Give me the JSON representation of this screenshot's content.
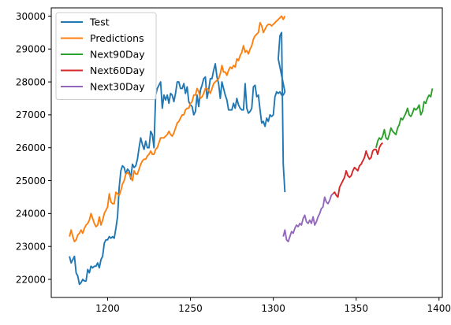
{
  "chart_data": {
    "type": "line",
    "xlim": [
      1166.0,
      1402.0
    ],
    "ylim": [
      21450,
      30250
    ],
    "xticks": [
      1200,
      1250,
      1300,
      1350,
      1400
    ],
    "yticks": [
      22000,
      23000,
      24000,
      25000,
      26000,
      27000,
      28000,
      29000,
      30000
    ],
    "legend_position": "top-left",
    "grid": false,
    "series": [
      {
        "name": "Test",
        "color": "#1f77b4",
        "x": [
          1177,
          1178,
          1179,
          1180,
          1181,
          1182,
          1183,
          1184,
          1185,
          1186,
          1187,
          1188,
          1189,
          1190,
          1191,
          1192,
          1193,
          1194,
          1195,
          1196,
          1197,
          1198,
          1199,
          1200,
          1201,
          1202,
          1203,
          1204,
          1205,
          1206,
          1207,
          1208,
          1209,
          1210,
          1211,
          1212,
          1213,
          1214,
          1215,
          1216,
          1217,
          1218,
          1219,
          1220,
          1221,
          1222,
          1223,
          1224,
          1225,
          1226,
          1227,
          1228,
          1229,
          1230,
          1231,
          1232,
          1233,
          1234,
          1235,
          1236,
          1237,
          1238,
          1239,
          1240,
          1241,
          1242,
          1243,
          1244,
          1245,
          1246,
          1247,
          1248,
          1249,
          1250,
          1251,
          1252,
          1253,
          1254,
          1255,
          1256,
          1257,
          1258,
          1259,
          1260,
          1261,
          1262,
          1263,
          1264,
          1265,
          1266,
          1267,
          1268,
          1269,
          1270,
          1271,
          1272,
          1273,
          1274,
          1275,
          1276,
          1277,
          1278,
          1279,
          1280,
          1281,
          1282,
          1283,
          1284,
          1285,
          1286,
          1287,
          1288,
          1289,
          1290,
          1291,
          1292,
          1293,
          1294,
          1295,
          1296,
          1297,
          1298,
          1299,
          1300,
          1301,
          1302,
          1303,
          1304,
          1305,
          1306,
          1307
        ],
        "y": [
          22700,
          22500,
          22600,
          22700,
          22200,
          22100,
          21850,
          21900,
          22000,
          21950,
          21950,
          22300,
          22200,
          22400,
          22350,
          22400,
          22400,
          22500,
          22350,
          22600,
          22700,
          23100,
          23200,
          23200,
          23300,
          23250,
          23300,
          23250,
          23550,
          23900,
          24800,
          25300,
          25450,
          25400,
          25200,
          25350,
          25300,
          25050,
          25500,
          25400,
          25450,
          25650,
          26000,
          26300,
          26100,
          25950,
          26200,
          26000,
          26000,
          26500,
          26400,
          26000,
          27600,
          27800,
          27900,
          28000,
          27200,
          27600,
          27450,
          27600,
          27350,
          27650,
          27600,
          27400,
          27650,
          28000,
          28000,
          27800,
          27800,
          27950,
          27650,
          27850,
          27400,
          27300,
          27250,
          27000,
          27100,
          27600,
          27250,
          27750,
          27900,
          28100,
          28150,
          27500,
          27750,
          28100,
          28100,
          28350,
          28550,
          28150,
          27950,
          27500,
          28000,
          27800,
          27600,
          27450,
          27150,
          27150,
          27150,
          27350,
          27200,
          27500,
          27300,
          27200,
          27150,
          27150,
          27950,
          27200,
          27050,
          27100,
          27200,
          27850,
          27900,
          27550,
          27600,
          27150,
          26750,
          26800,
          26650,
          26900,
          26800,
          27000,
          26950,
          27000,
          27550,
          27700,
          27650,
          27700,
          27600,
          27600,
          27700
        ],
        "tail_x": [
          1303,
          1304,
          1305,
          1306,
          1307
        ],
        "tail_y": [
          28700,
          29400,
          29500,
          25500,
          24650
        ]
      },
      {
        "name": "Predictions",
        "color": "#ff7f0e",
        "x": [
          1177,
          1178,
          1179,
          1180,
          1181,
          1182,
          1183,
          1184,
          1185,
          1186,
          1187,
          1188,
          1189,
          1190,
          1191,
          1192,
          1193,
          1194,
          1195,
          1196,
          1197,
          1198,
          1199,
          1200,
          1201,
          1202,
          1203,
          1204,
          1205,
          1206,
          1207,
          1208,
          1209,
          1210,
          1211,
          1212,
          1213,
          1214,
          1215,
          1216,
          1217,
          1218,
          1219,
          1220,
          1221,
          1222,
          1223,
          1224,
          1225,
          1226,
          1227,
          1228,
          1229,
          1230,
          1231,
          1232,
          1233,
          1234,
          1235,
          1236,
          1237,
          1238,
          1239,
          1240,
          1241,
          1242,
          1243,
          1244,
          1245,
          1246,
          1247,
          1248,
          1249,
          1250,
          1251,
          1252,
          1253,
          1254,
          1255,
          1256,
          1257,
          1258,
          1259,
          1260,
          1261,
          1262,
          1263,
          1264,
          1265,
          1266,
          1267,
          1268,
          1269,
          1270,
          1271,
          1272,
          1273,
          1274,
          1275,
          1276,
          1277,
          1278,
          1279,
          1280,
          1281,
          1282,
          1283,
          1284,
          1285,
          1286,
          1287,
          1288,
          1289,
          1290,
          1291,
          1292,
          1293,
          1294,
          1295,
          1296,
          1297,
          1298,
          1299,
          1300,
          1301,
          1302,
          1303,
          1304,
          1305,
          1306,
          1307
        ],
        "y": [
          23300,
          23500,
          23300,
          23150,
          23200,
          23350,
          23400,
          23500,
          23400,
          23550,
          23650,
          23700,
          23800,
          24000,
          23850,
          23700,
          23600,
          23650,
          23900,
          23650,
          23800,
          24000,
          24100,
          24200,
          24600,
          24350,
          24300,
          24300,
          24650,
          24600,
          24550,
          24700,
          24900,
          25000,
          25200,
          25250,
          25200,
          25100,
          25000,
          25300,
          25200,
          25200,
          25350,
          25500,
          25600,
          25650,
          25650,
          25750,
          25800,
          25900,
          25800,
          25800,
          25950,
          26000,
          26150,
          26300,
          26300,
          26300,
          26350,
          26400,
          26500,
          26400,
          26350,
          26450,
          26600,
          26750,
          26800,
          26900,
          27000,
          27000,
          27150,
          27200,
          27200,
          27350,
          27400,
          27600,
          27600,
          27800,
          27700,
          27500,
          27550,
          27650,
          27800,
          27800,
          27750,
          27650,
          27800,
          27950,
          28000,
          28050,
          28100,
          28250,
          28500,
          28300,
          28300,
          28200,
          28350,
          28450,
          28400,
          28500,
          28450,
          28700,
          28650,
          28800,
          28900,
          29100,
          28900,
          28950,
          28850,
          29000,
          29100,
          29300,
          29400,
          29450,
          29500,
          29800,
          29700,
          29500,
          29600,
          29700,
          29750,
          29750,
          29700,
          29750,
          29800,
          29850,
          29900,
          29950,
          30000,
          29900,
          30000
        ]
      },
      {
        "name": "Next90Day",
        "color": "#2ca02c",
        "x": [
          1362,
          1363,
          1364,
          1365,
          1366,
          1367,
          1368,
          1369,
          1370,
          1371,
          1372,
          1373,
          1374,
          1375,
          1376,
          1377,
          1378,
          1379,
          1380,
          1381,
          1382,
          1383,
          1384,
          1385,
          1386,
          1387,
          1388,
          1389,
          1390,
          1391,
          1392,
          1393,
          1394,
          1395,
          1396
        ],
        "y": [
          26000,
          26200,
          26300,
          26250,
          26350,
          26550,
          26300,
          26250,
          26400,
          26600,
          26500,
          26450,
          26400,
          26600,
          26700,
          26900,
          26850,
          26950,
          27050,
          27200,
          27000,
          26950,
          27050,
          27200,
          27150,
          27200,
          27300,
          27000,
          27100,
          27400,
          27350,
          27500,
          27600,
          27550,
          27800
        ]
      },
      {
        "name": "Next60Day",
        "color": "#d62728",
        "x": [
          1336,
          1337,
          1338,
          1339,
          1340,
          1341,
          1342,
          1343,
          1344,
          1345,
          1346,
          1347,
          1348,
          1349,
          1350,
          1351,
          1352,
          1353,
          1354,
          1355,
          1356,
          1357,
          1358,
          1359,
          1360,
          1361,
          1362,
          1363,
          1364,
          1365,
          1366
        ],
        "y": [
          24600,
          24650,
          24550,
          24500,
          24800,
          24900,
          25000,
          25100,
          25300,
          25150,
          25100,
          25150,
          25300,
          25400,
          25350,
          25300,
          25450,
          25500,
          25600,
          25700,
          25900,
          25750,
          25650,
          25700,
          25900,
          25950,
          25950,
          25800,
          26000,
          26100,
          26150
        ]
      },
      {
        "name": "Next30Day",
        "color": "#9467bd",
        "x": [
          1306,
          1307,
          1308,
          1309,
          1310,
          1311,
          1312,
          1313,
          1314,
          1315,
          1316,
          1317,
          1318,
          1319,
          1320,
          1321,
          1322,
          1323,
          1324,
          1325,
          1326,
          1327,
          1328,
          1329,
          1330,
          1331,
          1332,
          1333,
          1334,
          1335,
          1336
        ],
        "y": [
          23300,
          23500,
          23200,
          23150,
          23300,
          23450,
          23400,
          23550,
          23650,
          23600,
          23700,
          23650,
          23850,
          23950,
          23750,
          23700,
          23800,
          23700,
          23900,
          23650,
          23750,
          23900,
          24000,
          24150,
          24200,
          24500,
          24350,
          24300,
          24400,
          24550,
          24600
        ]
      }
    ]
  }
}
